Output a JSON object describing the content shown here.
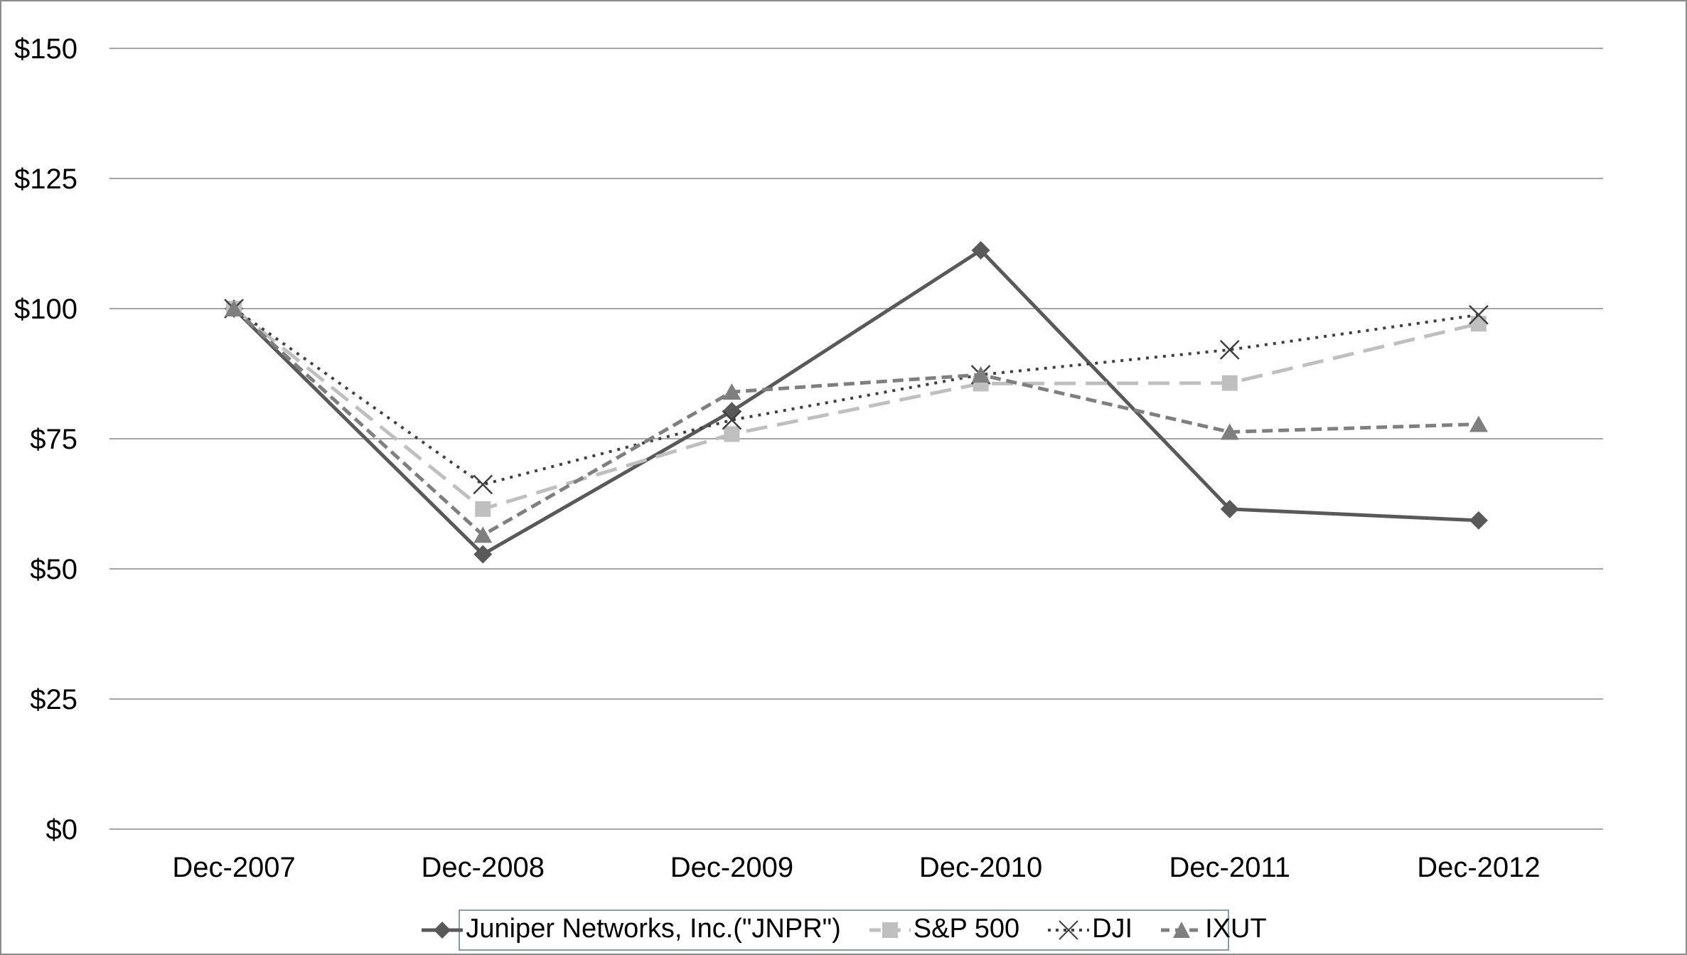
{
  "chart_data": {
    "type": "line",
    "title": "",
    "xlabel": "",
    "ylabel": "",
    "grid": true,
    "legend_position": "bottom",
    "categories": [
      "Dec-2007",
      "Dec-2008",
      "Dec-2009",
      "Dec-2010",
      "Dec-2011",
      "Dec-2012"
    ],
    "series": [
      {
        "name": "Juniper Networks, Inc.(\"JNPR\")",
        "marker": "diamond",
        "line_style": "solid",
        "color": "#595959",
        "values": [
          100,
          52.8,
          80.3,
          111.2,
          61.5,
          59.3
        ]
      },
      {
        "name": "S&P 500",
        "marker": "square",
        "line_style": "long-dash",
        "color": "#bfbfbf",
        "values": [
          100,
          61.5,
          75.9,
          85.6,
          85.7,
          97.1
        ]
      },
      {
        "name": "DJI",
        "marker": "x",
        "line_style": "dotted",
        "color": "#404040",
        "values": [
          100,
          66.2,
          78.6,
          87.3,
          92.1,
          98.8
        ]
      },
      {
        "name": "IXUT",
        "marker": "triangle",
        "line_style": "short-dash",
        "color": "#7f7f7f",
        "values": [
          100,
          56.5,
          84.0,
          87.3,
          76.3,
          77.8
        ]
      }
    ],
    "ylim": [
      0,
      150
    ],
    "ytick_step": 25,
    "ytick_prefix": "$",
    "ytick_labels": [
      "$0",
      "$25",
      "$50",
      "$75",
      "$100",
      "$125",
      "$150"
    ]
  },
  "colors": {
    "background": "#ffffff",
    "gridline": "#a6a6a6",
    "axis_text": "#000000",
    "frame": "#8c8c8c",
    "legend_border": "#7f9db9"
  }
}
